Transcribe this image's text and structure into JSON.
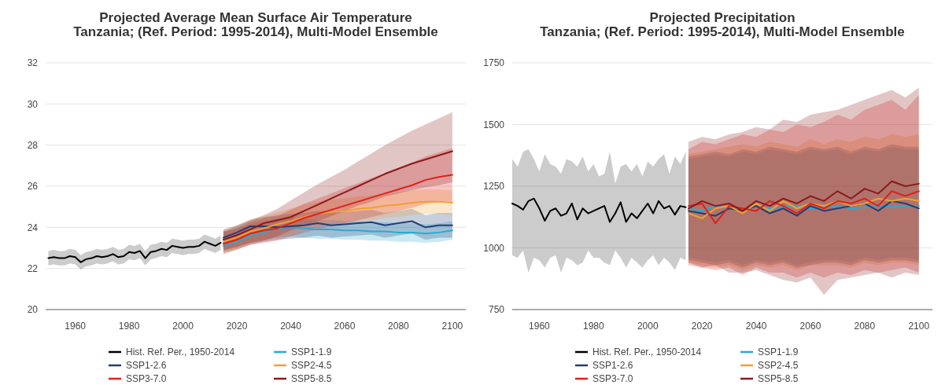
{
  "chart_data": [
    {
      "type": "line",
      "title": "Projected Average Mean Surface Air Temperature",
      "subtitle": "Tanzania; (Ref. Period: 1995-2014), Multi-Model Ensemble",
      "xlim": [
        1949,
        2105
      ],
      "xticks": [
        1960,
        1980,
        2000,
        2020,
        2040,
        2060,
        2080,
        2100
      ],
      "ylim": [
        20,
        32
      ],
      "yticks": [
        20,
        22,
        24,
        26,
        28,
        30,
        32
      ],
      "grid": "y",
      "legend": "bottom",
      "series": [
        {
          "name": "Hist. Ref. Per., 1950-2014",
          "color": "#000000",
          "x": [
            1950,
            1952,
            1954,
            1956,
            1958,
            1960,
            1962,
            1964,
            1966,
            1968,
            1970,
            1972,
            1974,
            1976,
            1978,
            1980,
            1982,
            1984,
            1986,
            1988,
            1990,
            1992,
            1994,
            1996,
            1998,
            2000,
            2002,
            2004,
            2006,
            2008,
            2010,
            2012,
            2014
          ],
          "values": [
            22.5,
            22.55,
            22.5,
            22.5,
            22.6,
            22.55,
            22.3,
            22.45,
            22.5,
            22.6,
            22.55,
            22.6,
            22.7,
            22.55,
            22.6,
            22.8,
            22.75,
            22.85,
            22.5,
            22.8,
            22.85,
            22.95,
            22.9,
            23.1,
            23.05,
            23.0,
            23.05,
            23.05,
            23.1,
            23.3,
            23.2,
            23.1,
            23.25
          ],
          "lower": [
            22.15,
            22.2,
            22.15,
            22.15,
            22.25,
            22.2,
            21.95,
            22.1,
            22.15,
            22.25,
            22.2,
            22.25,
            22.35,
            22.2,
            22.25,
            22.45,
            22.4,
            22.5,
            22.15,
            22.45,
            22.5,
            22.6,
            22.55,
            22.75,
            22.7,
            22.65,
            22.7,
            22.7,
            22.75,
            22.95,
            22.85,
            22.75,
            22.9
          ],
          "upper": [
            22.85,
            22.9,
            22.85,
            22.85,
            22.95,
            22.9,
            22.65,
            22.8,
            22.85,
            22.95,
            22.9,
            22.95,
            23.05,
            22.9,
            22.95,
            23.15,
            23.1,
            23.2,
            22.85,
            23.15,
            23.2,
            23.3,
            23.25,
            23.45,
            23.4,
            23.35,
            23.4,
            23.4,
            23.45,
            23.65,
            23.55,
            23.45,
            23.6
          ]
        },
        {
          "name": "SSP1-1.9",
          "color": "#29a9d1",
          "x": [
            2015,
            2020,
            2025,
            2030,
            2035,
            2040,
            2045,
            2050,
            2055,
            2060,
            2065,
            2070,
            2075,
            2080,
            2085,
            2090,
            2095,
            2100
          ],
          "values": [
            23.1,
            23.3,
            23.6,
            23.75,
            23.95,
            24.0,
            23.95,
            23.9,
            23.9,
            23.85,
            23.85,
            23.8,
            23.8,
            23.75,
            23.75,
            23.7,
            23.75,
            23.85
          ],
          "lower": [
            22.85,
            23.05,
            23.25,
            23.4,
            23.5,
            23.55,
            23.5,
            23.45,
            23.45,
            23.4,
            23.4,
            23.35,
            23.35,
            23.3,
            23.3,
            23.25,
            23.3,
            23.4
          ],
          "upper": [
            23.75,
            23.95,
            24.15,
            24.3,
            24.4,
            24.45,
            24.4,
            24.35,
            24.35,
            24.3,
            24.3,
            24.25,
            24.25,
            24.2,
            24.2,
            24.15,
            24.2,
            24.3
          ]
        },
        {
          "name": "SSP1-2.6",
          "color": "#1f3f77",
          "x": [
            2015,
            2020,
            2025,
            2030,
            2035,
            2040,
            2045,
            2050,
            2055,
            2060,
            2065,
            2070,
            2075,
            2080,
            2085,
            2090,
            2095,
            2100
          ],
          "values": [
            23.5,
            23.75,
            24.05,
            24.05,
            24.0,
            24.05,
            24.1,
            24.2,
            24.1,
            24.15,
            24.2,
            24.25,
            24.1,
            24.2,
            24.3,
            24.0,
            24.1,
            24.1
          ],
          "lower": [
            22.7,
            22.9,
            23.15,
            23.3,
            23.4,
            23.45,
            23.5,
            23.6,
            23.5,
            23.55,
            23.6,
            23.65,
            23.5,
            23.6,
            23.7,
            23.4,
            23.5,
            23.5
          ],
          "upper": [
            23.9,
            24.1,
            24.35,
            24.5,
            24.6,
            24.65,
            24.7,
            24.8,
            24.7,
            24.75,
            24.8,
            24.85,
            24.7,
            24.8,
            24.9,
            24.6,
            24.7,
            24.7
          ]
        },
        {
          "name": "SSP2-4.5",
          "color": "#f0a030",
          "x": [
            2015,
            2020,
            2025,
            2030,
            2035,
            2040,
            2045,
            2050,
            2055,
            2060,
            2065,
            2070,
            2075,
            2080,
            2085,
            2090,
            2095,
            2100
          ],
          "values": [
            23.3,
            23.5,
            23.8,
            23.95,
            24.15,
            24.3,
            24.5,
            24.65,
            24.75,
            24.8,
            24.9,
            24.95,
            25.05,
            25.1,
            25.2,
            25.25,
            25.25,
            25.2
          ],
          "lower": [
            22.7,
            22.9,
            23.2,
            23.35,
            23.55,
            23.7,
            23.9,
            24.05,
            24.15,
            24.2,
            24.3,
            24.35,
            24.45,
            24.5,
            24.6,
            24.65,
            24.65,
            24.6
          ],
          "upper": [
            23.9,
            24.1,
            24.4,
            24.55,
            24.75,
            24.9,
            25.1,
            25.25,
            25.35,
            25.4,
            25.5,
            25.55,
            25.65,
            25.7,
            25.8,
            25.85,
            25.85,
            25.8
          ]
        },
        {
          "name": "SSP3-7.0",
          "color": "#e0201b",
          "x": [
            2015,
            2020,
            2025,
            2030,
            2035,
            2040,
            2045,
            2050,
            2055,
            2060,
            2065,
            2070,
            2075,
            2080,
            2085,
            2090,
            2095,
            2100
          ],
          "values": [
            23.2,
            23.4,
            23.7,
            23.85,
            23.95,
            24.2,
            24.45,
            24.65,
            24.85,
            25.05,
            25.25,
            25.45,
            25.65,
            25.85,
            26.05,
            26.3,
            26.45,
            26.55
          ],
          "lower": [
            22.8,
            22.95,
            23.15,
            23.25,
            23.35,
            23.55,
            23.75,
            23.9,
            24.05,
            24.2,
            24.35,
            24.5,
            24.65,
            24.8,
            24.95,
            25.15,
            25.25,
            25.25
          ],
          "upper": [
            23.8,
            23.95,
            24.25,
            24.45,
            24.55,
            24.85,
            25.15,
            25.4,
            25.65,
            25.9,
            26.15,
            26.4,
            26.65,
            26.9,
            27.15,
            27.45,
            27.65,
            27.85
          ]
        },
        {
          "name": "SSP5-8.5",
          "color": "#8b1a1a",
          "x": [
            2015,
            2020,
            2025,
            2030,
            2035,
            2040,
            2045,
            2050,
            2055,
            2060,
            2065,
            2070,
            2075,
            2080,
            2085,
            2090,
            2095,
            2100
          ],
          "values": [
            23.4,
            23.62,
            23.9,
            24.2,
            24.35,
            24.5,
            24.8,
            25.1,
            25.4,
            25.7,
            26.0,
            26.3,
            26.6,
            26.85,
            27.1,
            27.3,
            27.5,
            27.7
          ],
          "lower": [
            22.9,
            23.05,
            23.25,
            23.35,
            23.55,
            23.85,
            24.1,
            24.3,
            24.55,
            24.8,
            25.05,
            25.25,
            25.5,
            25.65,
            25.8,
            25.95,
            26.05,
            26.2
          ],
          "upper": [
            23.8,
            24.05,
            24.35,
            24.6,
            24.9,
            25.3,
            25.7,
            26.1,
            26.45,
            26.8,
            27.2,
            27.6,
            28.0,
            28.35,
            28.7,
            29.0,
            29.3,
            29.6
          ]
        }
      ]
    },
    {
      "type": "line",
      "title": "Projected Precipitation",
      "subtitle": "Tanzania; (Ref. Period: 1995-2014), Multi-Model Ensemble",
      "xlim": [
        1950,
        2105
      ],
      "xticks": [
        1960,
        1980,
        2000,
        2020,
        2040,
        2060,
        2080,
        2100
      ],
      "ylim": [
        750,
        1750
      ],
      "yticks": [
        750,
        1000,
        1250,
        1500,
        1750
      ],
      "grid": "y",
      "legend": "bottom",
      "series": [
        {
          "name": "Hist. Ref. Per., 1950-2014",
          "color": "#000000",
          "x": [
            1950,
            1952,
            1954,
            1956,
            1958,
            1960,
            1962,
            1964,
            1966,
            1968,
            1970,
            1972,
            1974,
            1976,
            1978,
            1980,
            1982,
            1984,
            1986,
            1988,
            1990,
            1992,
            1994,
            1996,
            1998,
            2000,
            2002,
            2004,
            2006,
            2008,
            2010,
            2012,
            2014
          ],
          "values": [
            1180,
            1170,
            1155,
            1190,
            1200,
            1160,
            1110,
            1150,
            1160,
            1130,
            1140,
            1180,
            1115,
            1160,
            1140,
            1150,
            1160,
            1170,
            1105,
            1140,
            1185,
            1105,
            1140,
            1120,
            1150,
            1180,
            1140,
            1190,
            1160,
            1170,
            1135,
            1170,
            1165
          ],
          "lower": [
            970,
            960,
            990,
            900,
            960,
            950,
            920,
            960,
            970,
            900,
            960,
            950,
            930,
            940,
            990,
            960,
            960,
            940,
            930,
            990,
            960,
            920,
            960,
            940,
            920,
            950,
            970,
            930,
            960,
            940,
            910,
            960,
            950
          ],
          "upper": [
            1360,
            1330,
            1390,
            1400,
            1360,
            1310,
            1380,
            1340,
            1330,
            1300,
            1360,
            1350,
            1330,
            1370,
            1310,
            1340,
            1290,
            1300,
            1390,
            1260,
            1330,
            1340,
            1310,
            1340,
            1290,
            1350,
            1330,
            1360,
            1380,
            1300,
            1370,
            1340,
            1390
          ]
        },
        {
          "name": "SSP1-1.9",
          "color": "#29a9d1",
          "x": [
            2015,
            2020,
            2025,
            2030,
            2035,
            2040,
            2045,
            2050,
            2055,
            2060,
            2065,
            2070,
            2075,
            2080,
            2085,
            2090,
            2095,
            2100
          ],
          "values": [
            1160,
            1150,
            1170,
            1160,
            1150,
            1170,
            1160,
            1165,
            1170,
            1160,
            1165,
            1170,
            1160,
            1165,
            1170,
            1165,
            1170,
            1170
          ],
          "lower": [
            960,
            950,
            940,
            950,
            930,
            950,
            940,
            950,
            930,
            940,
            950,
            950,
            940,
            960,
            950,
            960,
            960,
            950
          ],
          "upper": [
            1360,
            1370,
            1380,
            1370,
            1390,
            1380,
            1400,
            1390,
            1380,
            1400,
            1390,
            1400,
            1380,
            1400,
            1390,
            1410,
            1400,
            1400
          ]
        },
        {
          "name": "SSP1-2.6",
          "color": "#1f3f77",
          "x": [
            2015,
            2020,
            2025,
            2030,
            2035,
            2040,
            2045,
            2050,
            2055,
            2060,
            2065,
            2070,
            2075,
            2080,
            2085,
            2090,
            2095,
            2100
          ],
          "values": [
            1150,
            1140,
            1130,
            1160,
            1150,
            1170,
            1140,
            1160,
            1130,
            1170,
            1150,
            1160,
            1170,
            1180,
            1150,
            1190,
            1180,
            1160
          ],
          "lower": [
            950,
            940,
            930,
            940,
            920,
            940,
            930,
            940,
            920,
            930,
            940,
            940,
            930,
            950,
            940,
            950,
            950,
            940
          ],
          "upper": [
            1370,
            1380,
            1390,
            1380,
            1400,
            1390,
            1410,
            1400,
            1390,
            1410,
            1400,
            1410,
            1390,
            1410,
            1400,
            1420,
            1410,
            1410
          ]
        },
        {
          "name": "SSP2-4.5",
          "color": "#f0a030",
          "x": [
            2015,
            2020,
            2025,
            2030,
            2035,
            2040,
            2045,
            2050,
            2055,
            2060,
            2065,
            2070,
            2075,
            2080,
            2085,
            2090,
            2095,
            2100
          ],
          "values": [
            1140,
            1120,
            1160,
            1170,
            1140,
            1180,
            1150,
            1190,
            1160,
            1180,
            1170,
            1190,
            1170,
            1180,
            1200,
            1190,
            1200,
            1190
          ],
          "lower": [
            940,
            930,
            920,
            930,
            910,
            930,
            920,
            930,
            910,
            930,
            930,
            930,
            920,
            940,
            930,
            940,
            940,
            930
          ],
          "upper": [
            1380,
            1390,
            1400,
            1410,
            1420,
            1410,
            1430,
            1420,
            1410,
            1440,
            1420,
            1440,
            1430,
            1450,
            1440,
            1460,
            1450,
            1460
          ]
        },
        {
          "name": "SSP3-7.0",
          "color": "#e0201b",
          "x": [
            2015,
            2020,
            2025,
            2030,
            2035,
            2040,
            2045,
            2050,
            2055,
            2060,
            2065,
            2070,
            2075,
            2080,
            2085,
            2090,
            2095,
            2100
          ],
          "values": [
            1170,
            1180,
            1100,
            1170,
            1160,
            1150,
            1190,
            1170,
            1140,
            1180,
            1160,
            1190,
            1180,
            1200,
            1170,
            1230,
            1210,
            1230
          ],
          "lower": [
            930,
            920,
            910,
            920,
            890,
            920,
            900,
            900,
            880,
            900,
            880,
            900,
            890,
            910,
            900,
            910,
            920,
            900
          ],
          "upper": [
            1400,
            1430,
            1420,
            1440,
            1460,
            1450,
            1480,
            1470,
            1500,
            1490,
            1510,
            1540,
            1520,
            1560,
            1580,
            1600,
            1560,
            1620
          ]
        },
        {
          "name": "SSP5-8.5",
          "color": "#8b1a1a",
          "x": [
            2015,
            2020,
            2025,
            2030,
            2035,
            2040,
            2045,
            2050,
            2055,
            2060,
            2065,
            2070,
            2075,
            2080,
            2085,
            2090,
            2095,
            2100
          ],
          "values": [
            1160,
            1190,
            1170,
            1180,
            1150,
            1190,
            1170,
            1200,
            1180,
            1210,
            1190,
            1230,
            1200,
            1240,
            1220,
            1270,
            1250,
            1260
          ],
          "lower": [
            940,
            920,
            930,
            900,
            900,
            910,
            890,
            870,
            860,
            880,
            810,
            870,
            880,
            890,
            900,
            880,
            900,
            890
          ],
          "upper": [
            1430,
            1450,
            1440,
            1460,
            1470,
            1490,
            1480,
            1520,
            1510,
            1540,
            1550,
            1560,
            1580,
            1600,
            1620,
            1640,
            1610,
            1650
          ]
        }
      ]
    }
  ]
}
